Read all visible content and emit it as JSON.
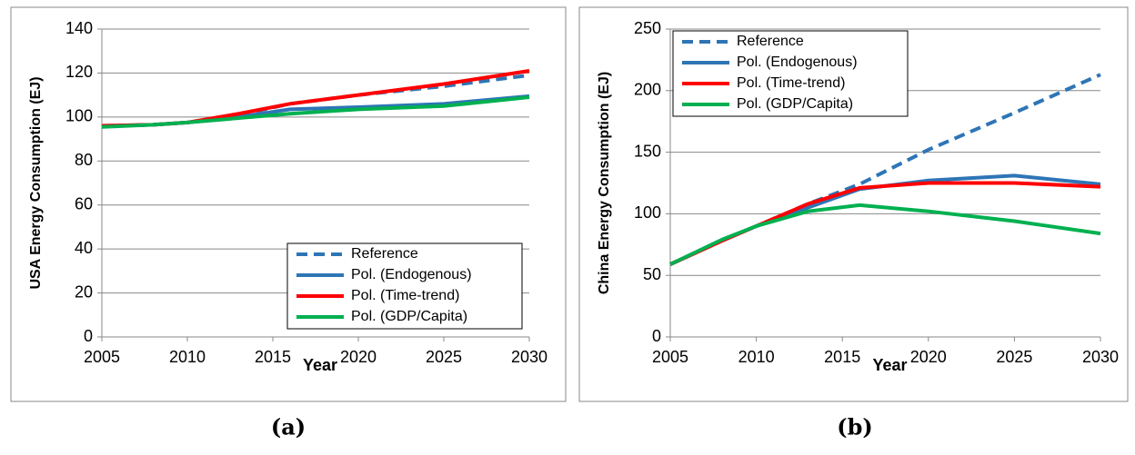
{
  "chart_data": [
    {
      "type": "line",
      "caption": "(a)",
      "xlabel": "Year",
      "ylabel": "USA Energy Consumption (EJ)",
      "x": [
        2005,
        2008,
        2010,
        2013,
        2016,
        2020,
        2025,
        2030
      ],
      "xlim": [
        2005,
        2030
      ],
      "xticks": [
        2005,
        2010,
        2015,
        2020,
        2025,
        2030
      ],
      "ylim": [
        0,
        140
      ],
      "yticks": [
        0,
        20,
        40,
        60,
        80,
        100,
        120,
        140
      ],
      "grid": true,
      "legend": "lower right",
      "series": [
        {
          "name": "Reference",
          "color": "#2e75b6",
          "dashed": true,
          "values": [
            96,
            96.5,
            97.5,
            101,
            106,
            110,
            114,
            119
          ]
        },
        {
          "name": "Pol. (Endogenous)",
          "color": "#2e75b6",
          "dashed": false,
          "values": [
            96,
            96.5,
            97.5,
            100,
            103.5,
            104.5,
            106,
            109.5
          ]
        },
        {
          "name": "Pol. (Time-trend)",
          "color": "#ff0000",
          "dashed": false,
          "values": [
            96,
            96.5,
            97.5,
            101.5,
            106,
            110,
            115,
            121
          ]
        },
        {
          "name": "Pol. (GDP/Capita)",
          "color": "#00b050",
          "dashed": false,
          "values": [
            95.5,
            96.5,
            97.5,
            99.5,
            101.5,
            103.5,
            105,
            109
          ]
        }
      ]
    },
    {
      "type": "line",
      "caption": "(b)",
      "xlabel": "Year",
      "ylabel": "China Energy Consumption (EJ)",
      "x": [
        2005,
        2008,
        2010,
        2013,
        2016,
        2020,
        2025,
        2030
      ],
      "xlim": [
        2005,
        2030
      ],
      "xticks": [
        2005,
        2010,
        2015,
        2020,
        2025,
        2030
      ],
      "ylim": [
        0,
        250
      ],
      "yticks": [
        0,
        50,
        100,
        150,
        200,
        250
      ],
      "grid": true,
      "legend": "upper left",
      "series": [
        {
          "name": "Reference",
          "color": "#2e75b6",
          "dashed": true,
          "values": [
            59,
            78,
            90,
            108,
            124,
            152,
            182,
            213
          ]
        },
        {
          "name": "Pol. (Endogenous)",
          "color": "#2e75b6",
          "dashed": false,
          "values": [
            59,
            78,
            90,
            105,
            120,
            127,
            131,
            124
          ]
        },
        {
          "name": "Pol. (Time-trend)",
          "color": "#ff0000",
          "dashed": false,
          "values": [
            59,
            78,
            90,
            108,
            121,
            125,
            125,
            122
          ]
        },
        {
          "name": "Pol. (GDP/Capita)",
          "color": "#00b050",
          "dashed": false,
          "values": [
            59,
            79,
            90,
            102,
            107,
            102,
            94,
            84
          ]
        }
      ]
    }
  ]
}
